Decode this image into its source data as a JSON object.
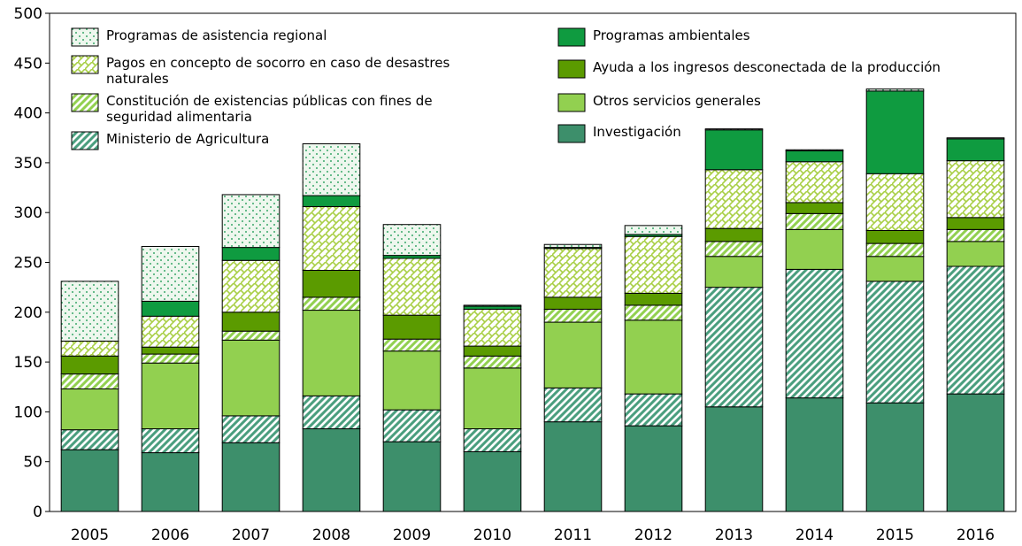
{
  "chart_data": {
    "type": "bar",
    "stacked": true,
    "categories": [
      "2005",
      "2006",
      "2007",
      "2008",
      "2009",
      "2010",
      "2011",
      "2012",
      "2013",
      "2014",
      "2015",
      "2016"
    ],
    "series": [
      {
        "name": "Investigación",
        "color": "#3d8f6b",
        "values": [
          62,
          59,
          69,
          83,
          70,
          60,
          90,
          86,
          105,
          114,
          109,
          118
        ]
      },
      {
        "name": "Ministerio de Agricultura",
        "color": "#4a9e7e",
        "pattern": "hatch",
        "values": [
          20,
          24,
          27,
          33,
          32,
          23,
          34,
          32,
          120,
          129,
          122,
          128
        ]
      },
      {
        "name": "Otros servicios generales",
        "color": "#92d050",
        "values": [
          41,
          66,
          76,
          86,
          59,
          61,
          66,
          74,
          31,
          40,
          25,
          25
        ]
      },
      {
        "name": "Constitución de existencias públicas con fines de seguridad alimentaria",
        "color": "#92d050",
        "pattern": "hatch",
        "values": [
          15,
          9,
          9,
          13,
          12,
          12,
          13,
          15,
          15,
          16,
          13,
          12
        ]
      },
      {
        "name": "Ayuda a los ingresos desconectada de la producción",
        "color": "#5b9b00",
        "values": [
          18,
          7,
          19,
          27,
          24,
          10,
          12,
          12,
          13,
          11,
          13,
          12
        ]
      },
      {
        "name": "Pagos en concepto de socorro en caso de desastres naturales",
        "color": "#a8cf45",
        "pattern": "cross",
        "values": [
          15,
          31,
          52,
          64,
          57,
          37,
          49,
          57,
          59,
          41,
          57,
          57
        ]
      },
      {
        "name": "Programas ambientales",
        "color": "#0f9b40",
        "values": [
          0,
          15,
          13,
          11,
          3,
          3,
          1,
          2,
          40,
          11,
          83,
          22
        ]
      },
      {
        "name": "Programas de asistencia regional",
        "color": "#3aa86a",
        "pattern": "dots",
        "values": [
          60,
          55,
          53,
          52,
          31,
          1,
          3,
          9,
          1,
          1,
          2,
          1
        ]
      }
    ],
    "ylim": [
      0,
      500
    ],
    "yticks": [
      0,
      50,
      100,
      150,
      200,
      250,
      300,
      350,
      400,
      450,
      500
    ]
  }
}
